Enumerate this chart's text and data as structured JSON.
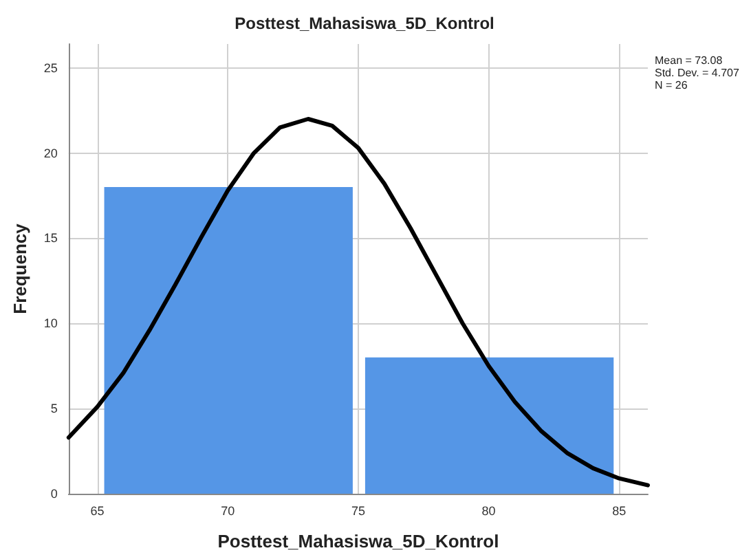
{
  "chart_data": {
    "type": "histogram",
    "title": "Posttest_Mahasiswa_5D_Kontrol",
    "xlabel": "Posttest_Mahasiswa_5D_Kontrol",
    "ylabel": "Frequency",
    "bins": [
      65,
      75,
      85
    ],
    "series": [
      {
        "color": "#5596e6",
        "values": [
          18,
          8
        ]
      },
      {
        "type": "line",
        "color": "#000000",
        "x": [
          63.9,
          65,
          66,
          67,
          68,
          69,
          70,
          71,
          72,
          73.08,
          74,
          75,
          76,
          77,
          78,
          79,
          80,
          81,
          82,
          83,
          84,
          85,
          86.1
        ],
        "values": [
          3.3,
          5.1,
          7.1,
          9.6,
          12.3,
          15.1,
          17.8,
          20,
          21.5,
          22,
          21.6,
          20.3,
          18.2,
          15.6,
          12.8,
          10,
          7.5,
          5.4,
          3.7,
          2.4,
          1.5,
          0.9,
          0.5
        ]
      }
    ],
    "xlim": [
      63.9,
      86.1
    ],
    "xticks": [
      65,
      70,
      75,
      80,
      85
    ],
    "ylim": [
      0,
      26.4
    ],
    "yticks": [
      0,
      5,
      10,
      15,
      20,
      25
    ],
    "grid": true,
    "marker": "none",
    "line_style": "solid",
    "annotations": [
      "Mean = 73.08",
      "Std. Dev. = 4.707",
      "N = 26"
    ]
  }
}
